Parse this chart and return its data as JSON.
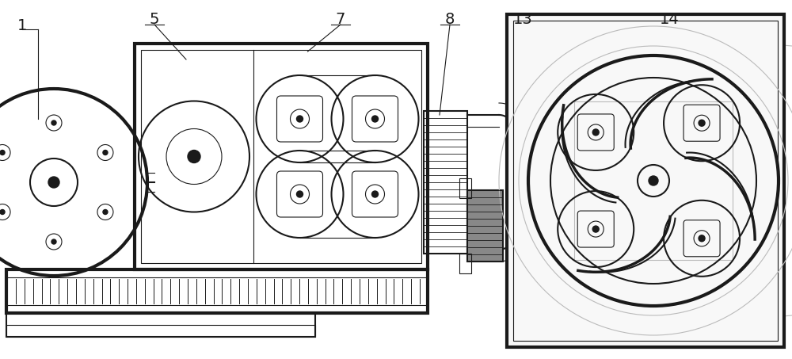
{
  "background_color": "#ffffff",
  "line_color": "#1a1a1a",
  "light_gray": "#bbbbbb",
  "mid_gray": "#888888",
  "dark_fill": "#444444"
}
